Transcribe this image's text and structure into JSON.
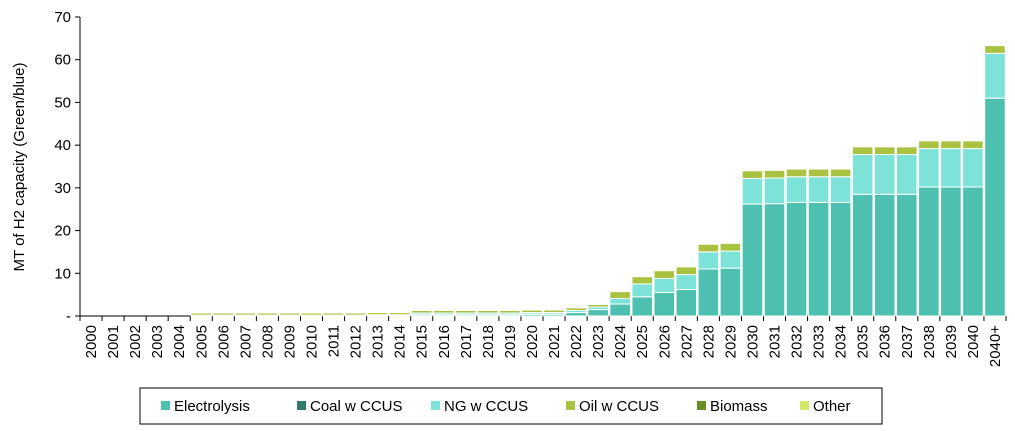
{
  "chart_data": {
    "type": "bar",
    "stacked": true,
    "title": "",
    "xlabel": "",
    "ylabel": "MT of H2 capacity (Green/blue)",
    "ylim": [
      0,
      70
    ],
    "yticks": [
      0,
      10,
      20,
      30,
      40,
      50,
      60,
      70
    ],
    "ytick_labels": [
      "-",
      "10",
      "20",
      "30",
      "40",
      "50",
      "60",
      "70"
    ],
    "grid": false,
    "legend_position": "bottom",
    "categories": [
      "2000",
      "2001",
      "2002",
      "2003",
      "2004",
      "2005",
      "2006",
      "2007",
      "2008",
      "2009",
      "2010",
      "2011",
      "2012",
      "2013",
      "2014",
      "2015",
      "2016",
      "2017",
      "2018",
      "2019",
      "2020",
      "2021",
      "2022",
      "2023",
      "2024",
      "2025",
      "2026",
      "2027",
      "2028",
      "2029",
      "2030",
      "2031",
      "2032",
      "2033",
      "2034",
      "2035",
      "2036",
      "2037",
      "2038",
      "2039",
      "2040",
      "2040+"
    ],
    "series": [
      {
        "name": "Electrolysis",
        "color": "#4ec0b0",
        "values": [
          0,
          0,
          0,
          0,
          0,
          0.1,
          0.1,
          0.1,
          0.1,
          0.1,
          0.1,
          0.1,
          0.1,
          0.2,
          0.2,
          0.3,
          0.3,
          0.3,
          0.3,
          0.3,
          0.4,
          0.4,
          0.8,
          1.5,
          2.8,
          4.5,
          5.5,
          6.2,
          11,
          11.2,
          26.2,
          26.3,
          26.6,
          26.6,
          26.6,
          28.5,
          28.5,
          28.5,
          30.2,
          30.2,
          30.2,
          51
        ]
      },
      {
        "name": "Coal w CCUS",
        "color": "#2e7a6c",
        "values": [
          0,
          0,
          0,
          0,
          0,
          0,
          0,
          0,
          0,
          0,
          0,
          0,
          0,
          0,
          0,
          0,
          0,
          0,
          0,
          0,
          0,
          0,
          0,
          0,
          0,
          0,
          0,
          0,
          0,
          0,
          0,
          0,
          0,
          0,
          0,
          0,
          0,
          0,
          0,
          0,
          0,
          0
        ]
      },
      {
        "name": "NG w CCUS",
        "color": "#7de3d8",
        "values": [
          0,
          0,
          0,
          0,
          0,
          0.1,
          0.1,
          0.1,
          0.1,
          0.1,
          0.1,
          0.1,
          0.1,
          0.1,
          0.1,
          0.4,
          0.4,
          0.4,
          0.4,
          0.4,
          0.4,
          0.4,
          0.5,
          0.6,
          1.3,
          3,
          3.3,
          3.5,
          4,
          4,
          6,
          6,
          6,
          6,
          6,
          9.3,
          9.3,
          9.3,
          9,
          9,
          9,
          10.5
        ]
      },
      {
        "name": "Oil w CCUS",
        "color": "#a9c23f",
        "values": [
          0,
          0,
          0,
          0,
          0,
          0.5,
          0.5,
          0.5,
          0.5,
          0.5,
          0.5,
          0.5,
          0.5,
          0.5,
          0.5,
          0.6,
          0.6,
          0.6,
          0.6,
          0.6,
          0.6,
          0.6,
          0.6,
          0.6,
          1.6,
          1.7,
          1.8,
          1.8,
          1.8,
          1.8,
          1.8,
          1.8,
          1.8,
          1.8,
          1.8,
          1.8,
          1.8,
          1.8,
          1.8,
          1.8,
          1.8,
          1.8
        ]
      },
      {
        "name": "Biomass",
        "color": "#6b8e23",
        "values": [
          0,
          0,
          0,
          0,
          0,
          0,
          0,
          0,
          0,
          0,
          0,
          0,
          0,
          0,
          0,
          0,
          0,
          0,
          0,
          0,
          0,
          0,
          0,
          0,
          0,
          0,
          0,
          0,
          0,
          0,
          0,
          0,
          0,
          0,
          0,
          0,
          0,
          0,
          0,
          0,
          0,
          0
        ]
      },
      {
        "name": "Other",
        "color": "#d4e86a",
        "values": [
          0,
          0,
          0,
          0,
          0,
          0,
          0,
          0,
          0,
          0,
          0,
          0,
          0,
          0,
          0,
          0,
          0,
          0,
          0,
          0,
          0,
          0,
          0,
          0,
          0,
          0,
          0,
          0,
          0,
          0,
          0,
          0,
          0,
          0,
          0,
          0,
          0,
          0,
          0,
          0,
          0,
          0
        ]
      }
    ]
  }
}
